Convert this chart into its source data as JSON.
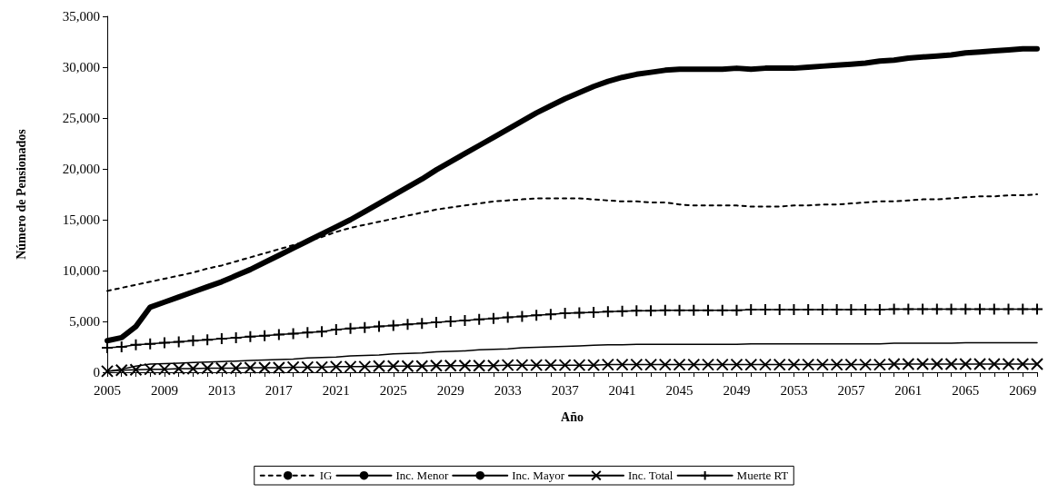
{
  "chart_data": {
    "type": "line",
    "xlabel": "Año",
    "ylabel": "Número de Pensionados",
    "categories": [
      "2005",
      null,
      null,
      null,
      "2009",
      null,
      null,
      null,
      "2013",
      null,
      null,
      null,
      "2017",
      null,
      null,
      null,
      "2021",
      null,
      null,
      null,
      "2025",
      null,
      null,
      null,
      "2029",
      null,
      null,
      null,
      "2033",
      null,
      null,
      null,
      "2037",
      null,
      null,
      null,
      "2041",
      null,
      null,
      null,
      "2045",
      null,
      null,
      null,
      "2049",
      null,
      null,
      null,
      "2053",
      null,
      null,
      null,
      "2057",
      null,
      null,
      null,
      "2061",
      null,
      null,
      null,
      "2065",
      null,
      null,
      null,
      "2069",
      null
    ],
    "ylim": [
      0,
      35000
    ],
    "yticks": [
      0,
      {
        "value": 5000,
        "label": "5,000"
      },
      {
        "value": 10000,
        "label": "10,000"
      },
      {
        "value": 15000,
        "label": "15,000"
      },
      {
        "value": 20000,
        "label": "20,000"
      },
      {
        "value": 25000,
        "label": "25,000"
      },
      {
        "value": 30000,
        "label": "30,000"
      },
      {
        "value": 35000,
        "label": "35,000"
      }
    ],
    "grid": false,
    "legend": "bottom",
    "series": [
      {
        "name": "IG",
        "color": "#000000",
        "line_style": "dashed",
        "marker": "none",
        "values": [
          8000,
          8300,
          8600,
          8900,
          9200,
          9500,
          9800,
          10200,
          10500,
          10900,
          11300,
          11700,
          12100,
          12500,
          12900,
          13300,
          13800,
          14200,
          14500,
          14800,
          15100,
          15400,
          15700,
          16000,
          16200,
          16400,
          16600,
          16800,
          16900,
          17000,
          17100,
          17100,
          17100,
          17100,
          17000,
          16900,
          16800,
          16800,
          16700,
          16700,
          16500,
          16400,
          16400,
          16400,
          16400,
          16300,
          16300,
          16300,
          16400,
          16400,
          16500,
          16500,
          16600,
          16700,
          16800,
          16800,
          16900,
          17000,
          17000,
          17100,
          17200,
          17300,
          17300,
          17400,
          17400,
          17500
        ]
      },
      {
        "name": "Inc. Menor",
        "color": "#000000",
        "line_style": "solid",
        "marker": "none",
        "values": [
          3100,
          3400,
          4500,
          6400,
          6900,
          7400,
          7900,
          8400,
          8900,
          9500,
          10100,
          10800,
          11500,
          12200,
          12900,
          13600,
          14300,
          15000,
          15800,
          16600,
          17400,
          18200,
          19000,
          19900,
          20700,
          21500,
          22300,
          23100,
          23900,
          24700,
          25500,
          26200,
          26900,
          27500,
          28100,
          28600,
          29000,
          29300,
          29500,
          29700,
          29800,
          29800,
          29800,
          29800,
          29900,
          29800,
          29900,
          29900,
          29900,
          30000,
          30100,
          30200,
          30300,
          30400,
          30600,
          30700,
          30900,
          31000,
          31100,
          31200,
          31400,
          31500,
          31600,
          31700,
          31800,
          31800
        ]
      },
      {
        "name": "Inc. Mayor",
        "color": "#000000",
        "line_style": "solid",
        "marker": "none",
        "values": [
          100,
          300,
          600,
          800,
          850,
          900,
          950,
          1000,
          1050,
          1100,
          1150,
          1200,
          1250,
          1300,
          1400,
          1450,
          1500,
          1600,
          1650,
          1700,
          1800,
          1850,
          1900,
          2000,
          2050,
          2100,
          2200,
          2250,
          2300,
          2400,
          2450,
          2500,
          2550,
          2600,
          2650,
          2700,
          2700,
          2750,
          2750,
          2750,
          2750,
          2750,
          2750,
          2750,
          2750,
          2800,
          2800,
          2800,
          2800,
          2800,
          2800,
          2800,
          2800,
          2800,
          2800,
          2850,
          2850,
          2850,
          2850,
          2850,
          2900,
          2900,
          2900,
          2900,
          2900,
          2900
        ]
      },
      {
        "name": "Inc. Total",
        "color": "#000000",
        "line_style": "solid",
        "marker": "cross",
        "values": [
          100,
          200,
          250,
          300,
          300,
          350,
          350,
          400,
          400,
          400,
          450,
          450,
          450,
          500,
          500,
          500,
          550,
          550,
          550,
          600,
          600,
          600,
          600,
          650,
          650,
          650,
          650,
          650,
          700,
          700,
          700,
          700,
          700,
          700,
          700,
          750,
          750,
          750,
          750,
          750,
          750,
          750,
          750,
          750,
          750,
          750,
          750,
          750,
          750,
          750,
          750,
          750,
          750,
          750,
          750,
          800,
          800,
          800,
          800,
          800,
          800,
          800,
          800,
          800,
          800,
          800
        ]
      },
      {
        "name": "Muerte RT",
        "color": "#000000",
        "line_style": "solid",
        "marker": "plus",
        "values": [
          2400,
          2500,
          2700,
          2800,
          2900,
          3000,
          3100,
          3200,
          3300,
          3400,
          3500,
          3600,
          3700,
          3800,
          3900,
          4000,
          4200,
          4300,
          4400,
          4500,
          4600,
          4700,
          4800,
          4900,
          5000,
          5100,
          5200,
          5300,
          5400,
          5500,
          5600,
          5700,
          5800,
          5850,
          5900,
          5950,
          6000,
          6050,
          6050,
          6100,
          6100,
          6100,
          6100,
          6100,
          6100,
          6150,
          6150,
          6150,
          6150,
          6150,
          6150,
          6150,
          6150,
          6150,
          6150,
          6200,
          6200,
          6200,
          6200,
          6200,
          6200,
          6200,
          6200,
          6200,
          6200,
          6200
        ]
      }
    ]
  }
}
